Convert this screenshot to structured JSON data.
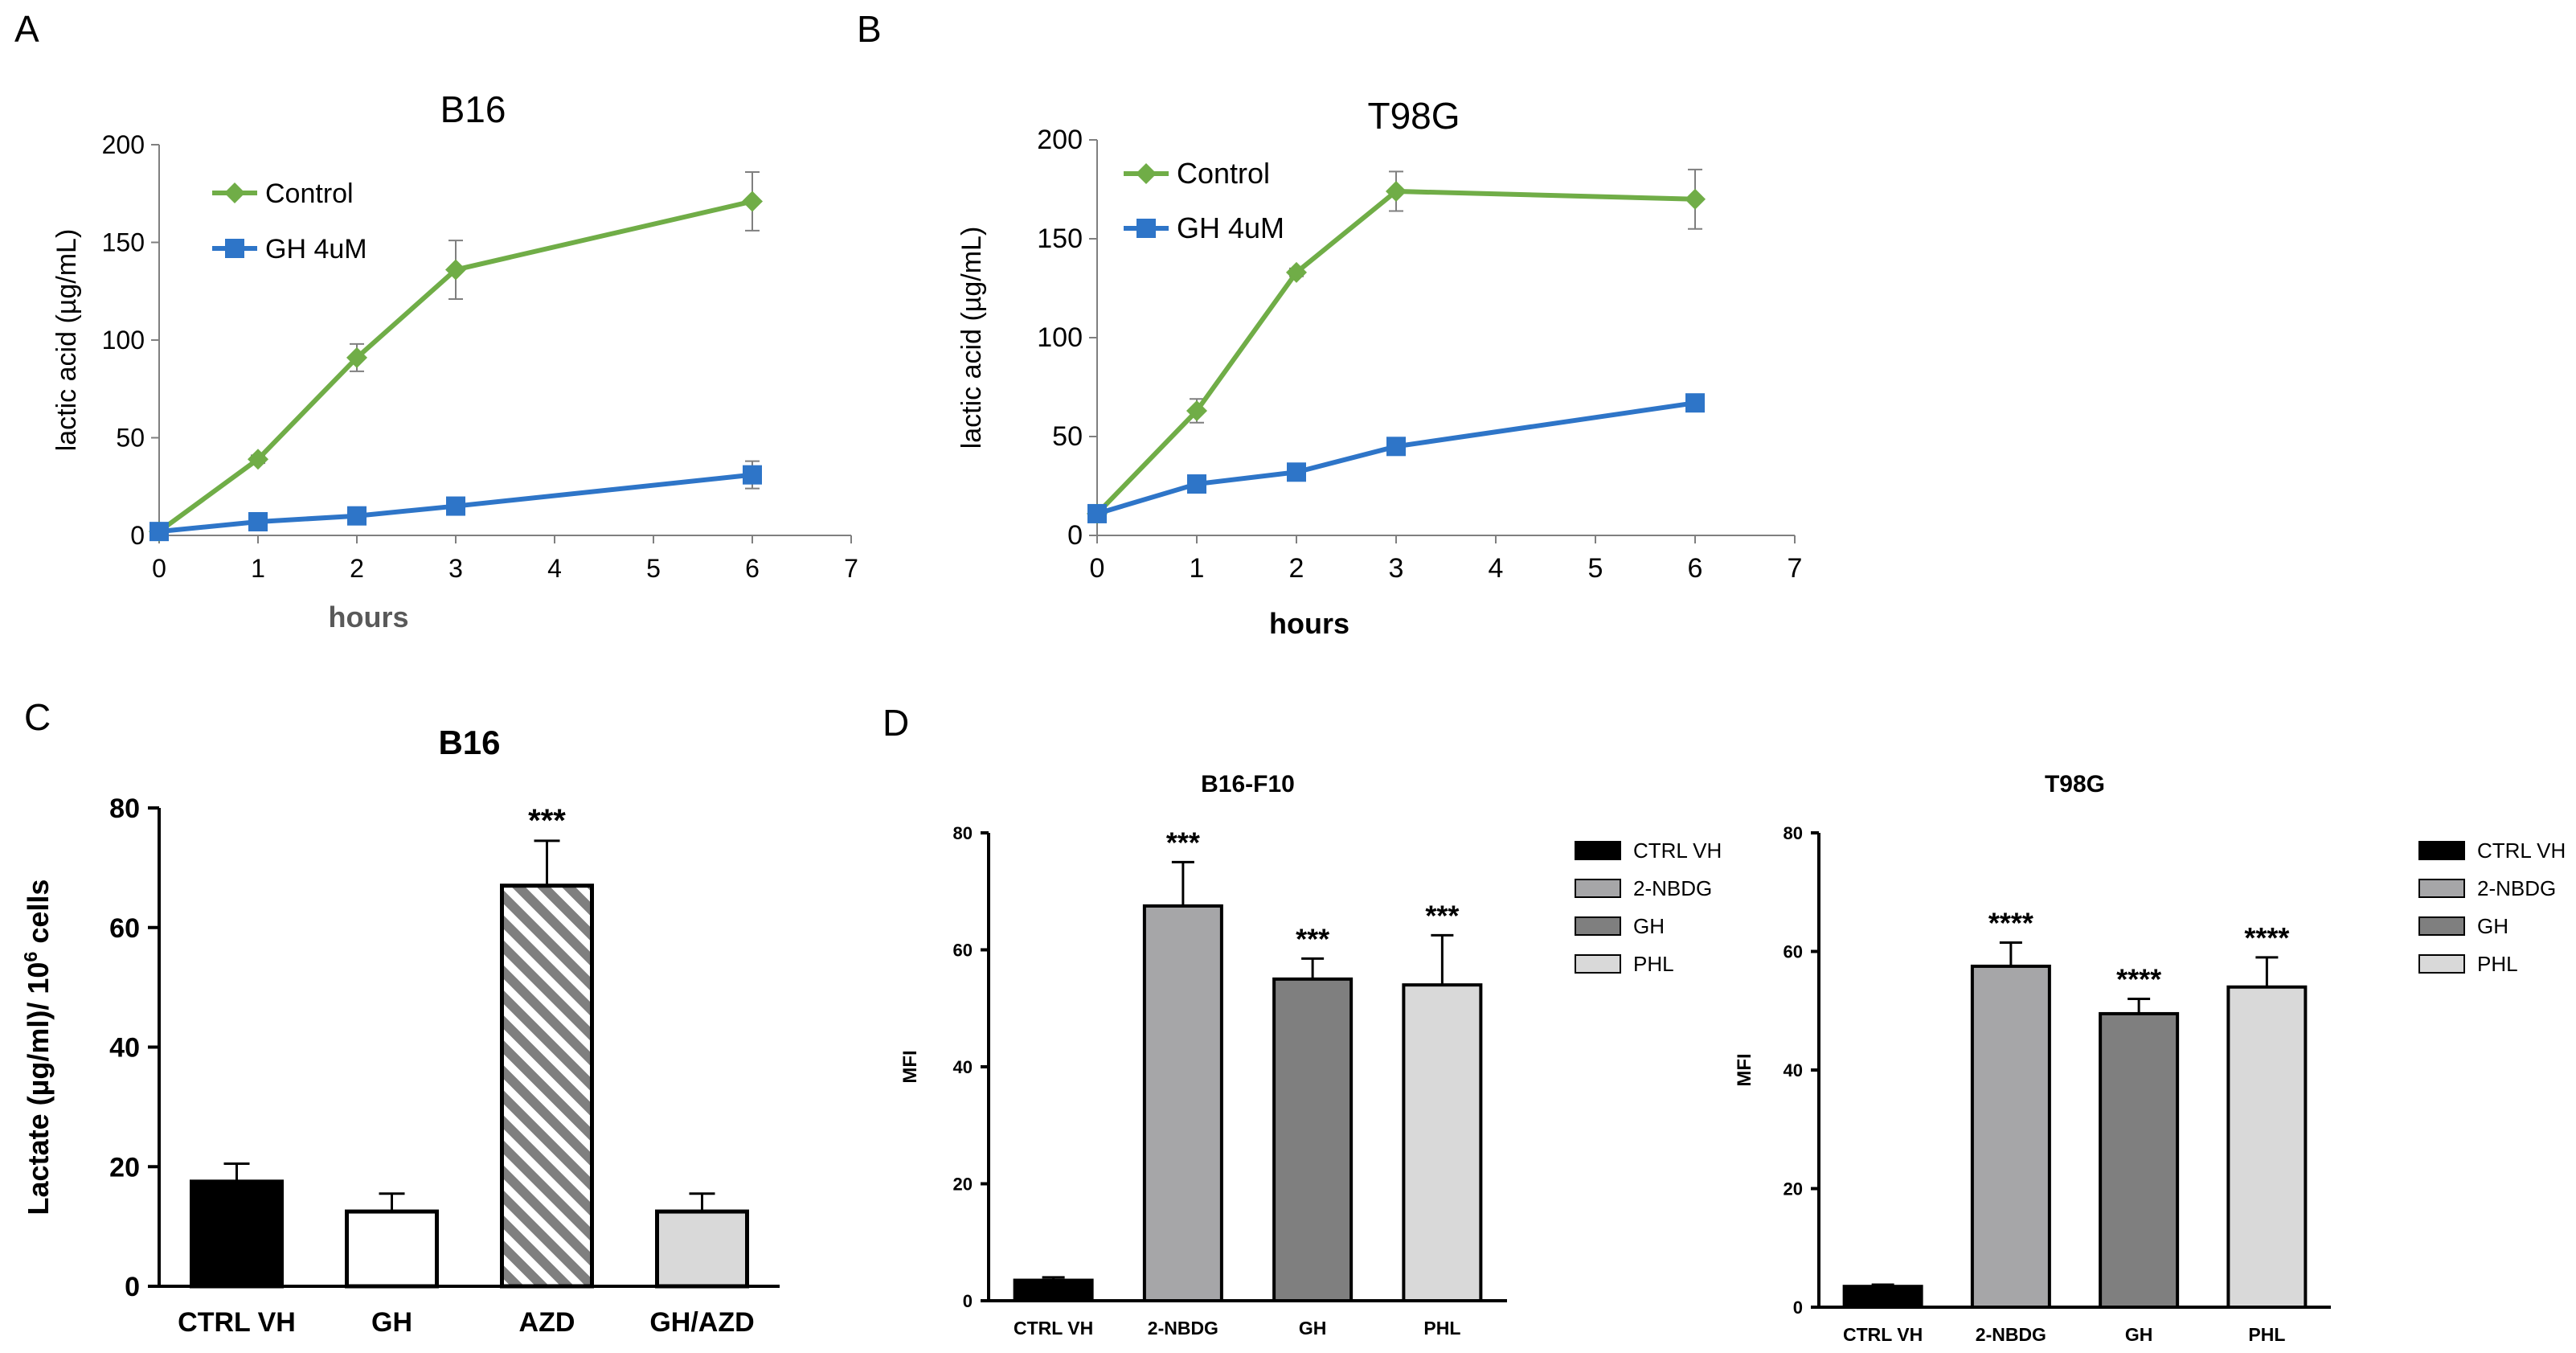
{
  "panel_letters": {
    "A": "A",
    "B": "B",
    "C": "C",
    "D": "D"
  },
  "chart_data": [
    {
      "id": "A",
      "type": "line",
      "title": "B16",
      "xlabel": "hours",
      "ylabel": "lactic acid  (µg/mL)",
      "xlim": [
        0,
        7
      ],
      "ylim": [
        0,
        200
      ],
      "xticks": [
        "0",
        "1",
        "2",
        "3",
        "4",
        "5",
        "6",
        "7"
      ],
      "yticks": [
        "0",
        "50",
        "100",
        "150",
        "200"
      ],
      "x": [
        0,
        1,
        2,
        3,
        6
      ],
      "series": [
        {
          "name": "Control",
          "color": "#70ad47",
          "marker": "diamond",
          "values": [
            2,
            39,
            91,
            136,
            171
          ],
          "errors": [
            0,
            2,
            7,
            15,
            15
          ]
        },
        {
          "name": "GH 4uM",
          "color": "#2e75c8",
          "marker": "square",
          "values": [
            2,
            7,
            10,
            15,
            31
          ],
          "errors": [
            0,
            1,
            2,
            2,
            7
          ]
        }
      ],
      "legend": "top-left"
    },
    {
      "id": "B",
      "type": "line",
      "title": "T98G",
      "xlabel": "hours",
      "ylabel": "lactic acid  (µg/mL)",
      "xlim": [
        0,
        7
      ],
      "ylim": [
        0,
        200
      ],
      "xticks": [
        "0",
        "1",
        "2",
        "3",
        "4",
        "5",
        "6",
        "7"
      ],
      "yticks": [
        "0",
        "50",
        "100",
        "150",
        "200"
      ],
      "x": [
        0,
        1,
        2,
        3,
        6
      ],
      "series": [
        {
          "name": "Control",
          "color": "#70ad47",
          "marker": "diamond",
          "values": [
            11,
            63,
            133,
            174,
            170
          ],
          "errors": [
            0,
            6,
            2,
            10,
            15
          ]
        },
        {
          "name": "GH 4uM",
          "color": "#2e75c8",
          "marker": "square",
          "values": [
            11,
            26,
            32,
            45,
            67
          ],
          "errors": [
            0,
            1,
            1,
            1,
            1
          ]
        }
      ],
      "legend": "top-left"
    },
    {
      "id": "C",
      "type": "bar",
      "title": "B16",
      "ylabel_main": "Lactate (µg/ml)/ 10",
      "ylabel_sup": "6",
      "ylabel_tail": " cells",
      "ylim": [
        0,
        80
      ],
      "yticks": [
        "0",
        "20",
        "40",
        "60",
        "80"
      ],
      "categories": [
        "CTRL VH",
        "GH",
        "AZD",
        "GH/AZD"
      ],
      "values": [
        17.5,
        12.5,
        67,
        12.5
      ],
      "errors": [
        3,
        3,
        7.5,
        3
      ],
      "fills": [
        "#000000",
        "#ffffff",
        "hatch",
        "#d9d9d9"
      ],
      "annotations": [
        "",
        "",
        "***",
        ""
      ]
    },
    {
      "id": "D1",
      "type": "bar",
      "title": "B16-F10",
      "ylabel": "MFI",
      "ylim": [
        0,
        80
      ],
      "yticks": [
        "0",
        "20",
        "40",
        "60",
        "80"
      ],
      "categories": [
        "CTRL VH",
        "2-NBDG",
        "GH",
        "PHL"
      ],
      "values": [
        3.5,
        67.5,
        55,
        54
      ],
      "errors": [
        0.5,
        7.5,
        3.5,
        8.5
      ],
      "fills": [
        "#000000",
        "#a6a6a8",
        "#7f7f7f",
        "#d9d9d9"
      ],
      "annotations": [
        "",
        "***",
        "***",
        "***"
      ],
      "legend": [
        {
          "label": "CTRL VH",
          "color": "#000000"
        },
        {
          "label": "2-NBDG",
          "color": "#a6a6a8"
        },
        {
          "label": "GH",
          "color": "#7f7f7f"
        },
        {
          "label": "PHL",
          "color": "#d9d9d9"
        }
      ]
    },
    {
      "id": "D2",
      "type": "bar",
      "title": "T98G",
      "ylabel": "MFI",
      "ylim": [
        0,
        80
      ],
      "yticks": [
        "0",
        "20",
        "40",
        "60",
        "80"
      ],
      "categories": [
        "CTRL VH",
        "2-NBDG",
        "GH",
        "PHL"
      ],
      "values": [
        3.5,
        57.5,
        49.5,
        54
      ],
      "errors": [
        0.3,
        4,
        2.5,
        5
      ],
      "fills": [
        "#000000",
        "#a6a6a8",
        "#7f7f7f",
        "#d9d9d9"
      ],
      "annotations": [
        "",
        "****",
        "****",
        "****"
      ],
      "legend": [
        {
          "label": "CTRL VH",
          "color": "#000000"
        },
        {
          "label": "2-NBDG",
          "color": "#a6a6a8"
        },
        {
          "label": "GH",
          "color": "#7f7f7f"
        },
        {
          "label": "PHL",
          "color": "#d9d9d9"
        }
      ]
    }
  ]
}
